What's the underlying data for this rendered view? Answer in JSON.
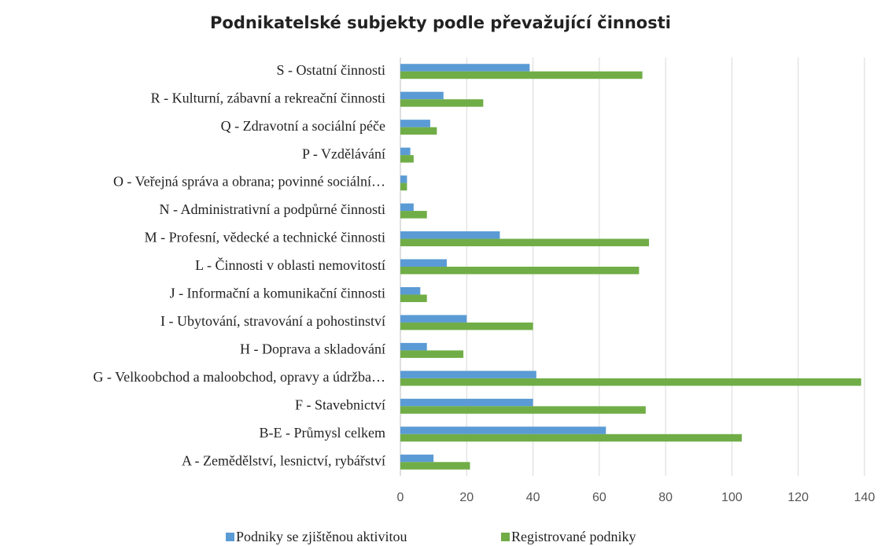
{
  "chart_data": {
    "type": "bar",
    "orientation": "horizontal",
    "title": "Podnikatelské subjekty podle převažující činnosti",
    "categories": [
      "S - Ostatní činnosti",
      "R - Kulturní, zábavní a rekreační činnosti",
      "Q -  Zdravotní a sociální péče",
      "P - Vzdělávání",
      "O - Veřejná správa a obrana; povinné sociální…",
      "N - Administrativní a podpůrné činnosti",
      "M - Profesní, vědecké a technické činnosti",
      "L - Činnosti v oblasti nemovitostí",
      "J - Informační a komunikační činnosti",
      "I - Ubytování, stravování a pohostinství",
      "H - Doprava a skladování",
      "G - Velkoobchod a maloobchod, opravy a údržba…",
      "F - Stavebnictví",
      "B-E - Průmysl celkem",
      "A - Zemědělství, lesnictví, rybářství"
    ],
    "series": [
      {
        "name": "Podniky se zjištěnou aktivitou",
        "color": "#5b9bd5",
        "values": [
          39,
          13,
          9,
          3,
          2,
          4,
          30,
          14,
          6,
          20,
          8,
          41,
          40,
          62,
          10
        ]
      },
      {
        "name": "Registrované podniky",
        "color": "#70ad47",
        "values": [
          73,
          25,
          11,
          4,
          2,
          8,
          75,
          72,
          8,
          40,
          19,
          139,
          74,
          103,
          21
        ]
      }
    ],
    "xlim": [
      0,
      140
    ],
    "xticks": [
      0,
      20,
      40,
      60,
      80,
      100,
      120,
      140
    ],
    "grid": true,
    "legend": "bottom"
  }
}
